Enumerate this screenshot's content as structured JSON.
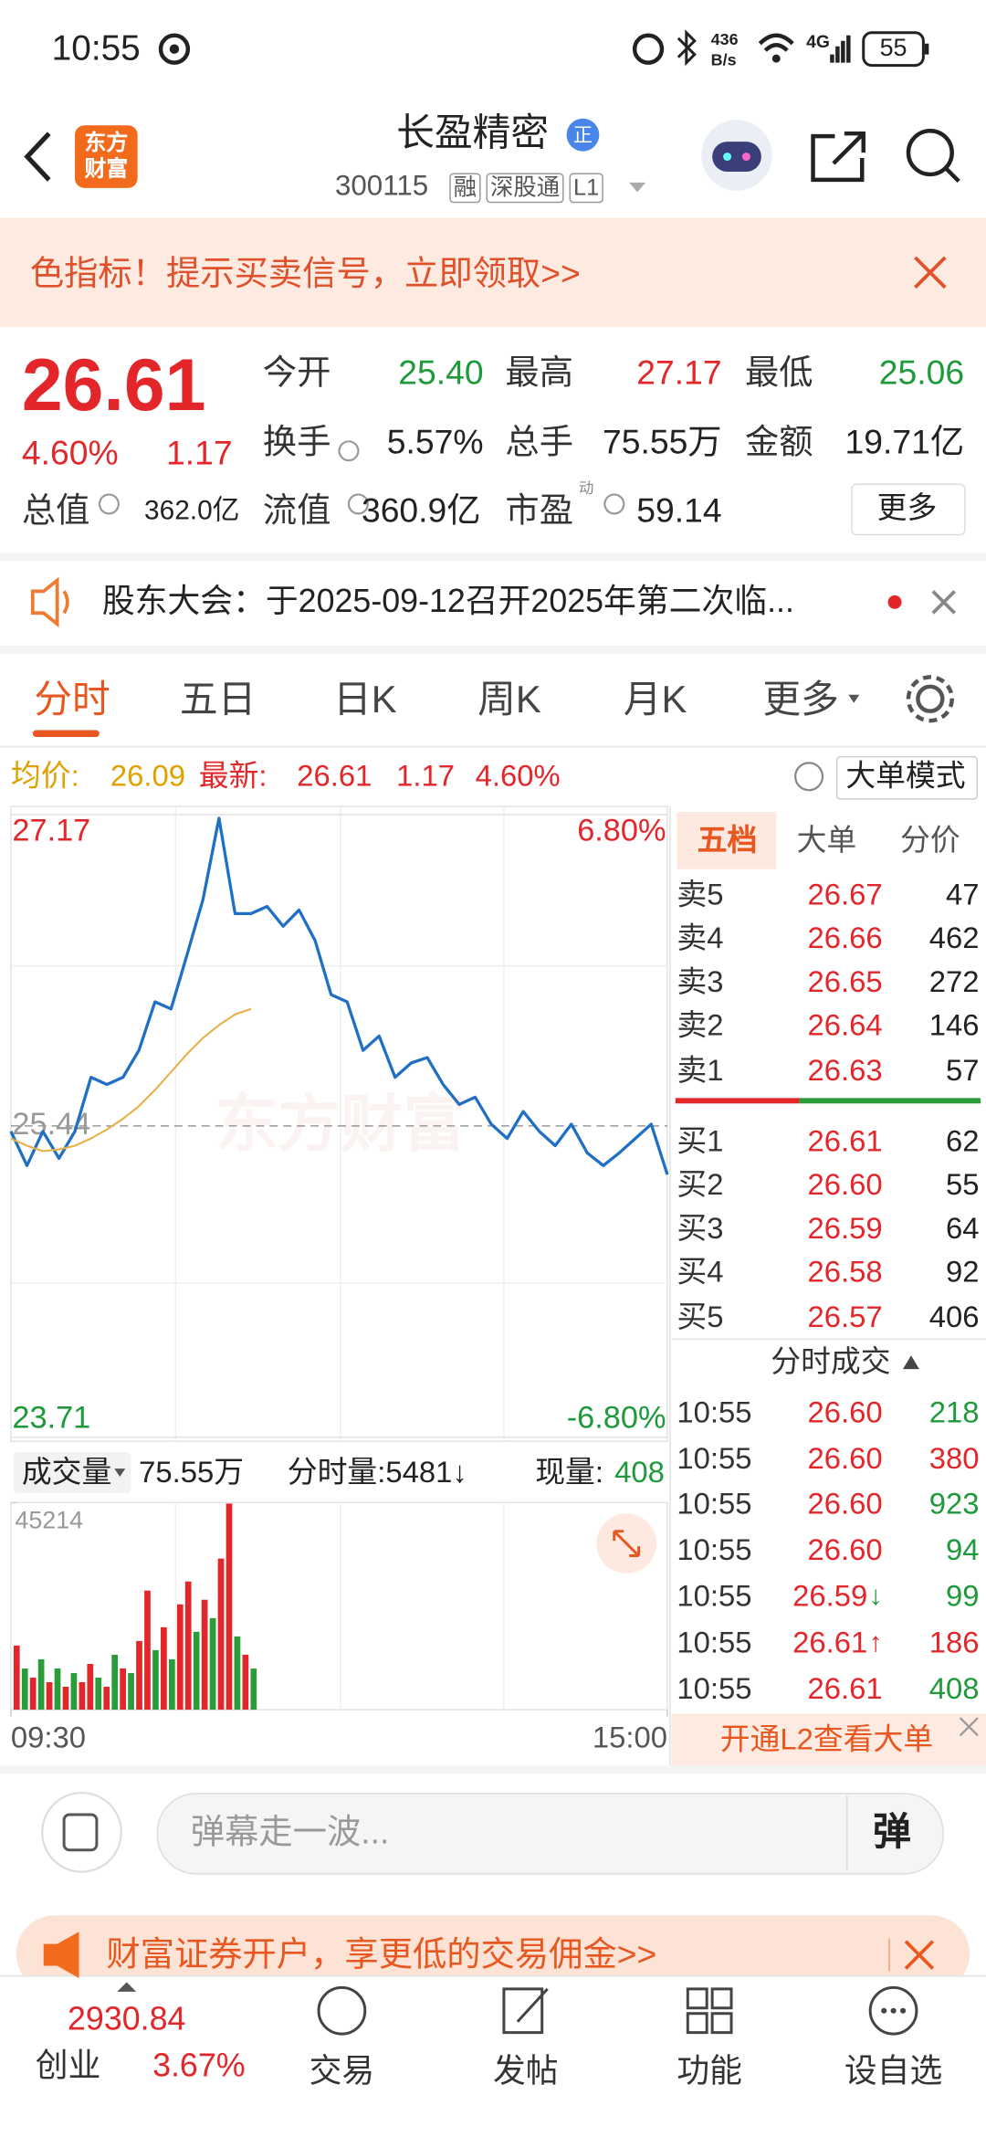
{
  "status_bar": {
    "time": "10:55",
    "speed": "436",
    "speed_unit": "B/s",
    "network": "4G",
    "battery": "55"
  },
  "header": {
    "logo": "东方财富",
    "title": "长盈精密",
    "badge": "正",
    "code": "300115",
    "tags": [
      "融",
      "深股通",
      "L1"
    ]
  },
  "banner": {
    "text": "色指标！提示买卖信号，立即领取>>"
  },
  "quote": {
    "price": "26.61",
    "change_pct": "4.60%",
    "change": "1.17",
    "fields": [
      {
        "label": "今开",
        "value": "25.40",
        "color": "#1e9a3a"
      },
      {
        "label": "最高",
        "value": "27.17",
        "color": "#e3262a"
      },
      {
        "label": "最低",
        "value": "25.06",
        "color": "#1e9a3a"
      },
      {
        "label": "换手",
        "value": "5.57%",
        "color": "#222222"
      },
      {
        "label": "总手",
        "value": "75.55万",
        "color": "#222222"
      },
      {
        "label": "金额",
        "value": "19.71亿",
        "color": "#222222"
      },
      {
        "label": "总值",
        "value": "362.0亿",
        "color": "#222222"
      },
      {
        "label": "流值",
        "value": "360.9亿",
        "color": "#222222"
      },
      {
        "label": "市盈",
        "value": "59.14",
        "color": "#222222",
        "sup": "动"
      }
    ],
    "more": "更多"
  },
  "notice": {
    "text": "股东大会：于2025-09-12召开2025年第二次临..."
  },
  "tabs": {
    "items": [
      "分时",
      "五日",
      "日K",
      "周K",
      "月K",
      "更多"
    ],
    "active": 0
  },
  "chart_info": {
    "avg_label": "均价:",
    "avg": "26.09",
    "latest_label": "最新:",
    "latest": "26.61",
    "change": "1.17",
    "change_pct": "4.60%",
    "mode": "大单模式"
  },
  "volume_info": {
    "label": "成交量",
    "total": "75.55万",
    "minute": "分时量:5481↓",
    "current_label": "现量:",
    "current": "408"
  },
  "chart_data": [
    {
      "type": "line",
      "ylim": [
        23.71,
        27.17
      ],
      "yticks": [
        27.17,
        25.44,
        23.71
      ],
      "y2lim": [
        -6.8,
        6.8
      ],
      "y2ticks": [
        {
          "value": 6.8,
          "label": "6.80%"
        },
        {
          "value": -6.8,
          "label": "-6.80%"
        }
      ],
      "xlim": [
        0,
        41
      ],
      "xticks": [
        {
          "value": 0,
          "label": "09:30"
        },
        {
          "value": 41,
          "label": "15:00"
        }
      ],
      "series": [
        {
          "color": "#1f6fc5",
          "values": [
            25.41,
            25.22,
            25.41,
            25.26,
            25.41,
            25.71,
            25.67,
            25.71,
            25.86,
            26.13,
            26.09,
            26.39,
            26.7,
            27.15,
            26.62,
            26.62,
            26.66,
            26.55,
            26.64,
            26.47,
            26.17,
            26.13,
            25.86,
            25.94,
            25.71,
            25.79,
            25.82,
            25.67,
            25.56,
            25.6,
            25.45,
            25.37,
            25.52,
            25.41,
            25.33,
            25.45,
            25.29,
            25.22,
            25.29,
            25.37,
            25.45,
            25.17
          ]
        },
        {
          "color": "#e8b04a",
          "values": [
            25.37,
            25.33,
            25.3,
            25.31,
            25.33,
            25.37,
            25.42,
            25.48,
            25.55,
            25.64,
            25.74,
            25.84,
            25.93,
            26.0,
            26.06,
            26.09,
            null,
            null,
            null,
            null,
            null,
            null,
            null,
            null,
            null,
            null,
            null,
            null,
            null,
            null,
            null,
            null,
            null,
            null,
            null,
            null,
            null,
            null,
            null,
            null,
            null,
            null
          ]
        }
      ]
    },
    {
      "type": "bar",
      "ylim": [
        0,
        45214
      ],
      "yticks": [
        45214
      ],
      "values": [
        14000,
        9000,
        7000,
        11000,
        6000,
        9000,
        5000,
        8000,
        6000,
        10000,
        7000,
        5000,
        12000,
        9000,
        8000,
        15000,
        26000,
        13000,
        18000,
        11000,
        23000,
        28000,
        17000,
        24000,
        20000,
        33000,
        45000,
        16000,
        12000,
        9000
      ],
      "up": [
        true,
        false,
        true,
        false,
        true,
        false,
        true,
        false,
        true,
        true,
        false,
        true,
        false,
        true,
        false,
        true,
        true,
        false,
        true,
        false,
        true,
        true,
        false,
        true,
        false,
        true,
        true,
        false,
        true,
        false
      ],
      "colors": {
        "up": "#e3262a",
        "down": "#2a9d3a"
      }
    }
  ],
  "order_book": {
    "tabs": [
      "五档",
      "大单",
      "分价"
    ],
    "asks": [
      {
        "label": "卖5",
        "price": "26.67",
        "vol": "47"
      },
      {
        "label": "卖4",
        "price": "26.66",
        "vol": "462"
      },
      {
        "label": "卖3",
        "price": "26.65",
        "vol": "272"
      },
      {
        "label": "卖2",
        "price": "26.64",
        "vol": "146"
      },
      {
        "label": "卖1",
        "price": "26.63",
        "vol": "57"
      }
    ],
    "bids": [
      {
        "label": "买1",
        "price": "26.61",
        "vol": "62"
      },
      {
        "label": "买2",
        "price": "26.60",
        "vol": "55"
      },
      {
        "label": "买3",
        "price": "26.59",
        "vol": "64"
      },
      {
        "label": "买4",
        "price": "26.58",
        "vol": "92"
      },
      {
        "label": "买5",
        "price": "26.57",
        "vol": "406"
      }
    ],
    "trades_title": "分时成交",
    "trades": [
      {
        "time": "10:55",
        "price": "26.60",
        "vol": "218",
        "color": "#1e9a3a"
      },
      {
        "time": "10:55",
        "price": "26.60",
        "vol": "380",
        "color": "#e3262a"
      },
      {
        "time": "10:55",
        "price": "26.60",
        "vol": "923",
        "color": "#1e9a3a"
      },
      {
        "time": "10:55",
        "price": "26.60",
        "vol": "94",
        "color": "#1e9a3a"
      },
      {
        "time": "10:55",
        "price": "26.59",
        "arrow": "↓",
        "arrow_color": "#1e9a3a",
        "vol": "99",
        "color": "#1e9a3a"
      },
      {
        "time": "10:55",
        "price": "26.61",
        "arrow": "↑",
        "arrow_color": "#e3262a",
        "vol": "186",
        "color": "#e3262a"
      },
      {
        "time": "10:55",
        "price": "26.61",
        "vol": "408",
        "color": "#1e9a3a"
      }
    ],
    "l2": "开通L2查看大单"
  },
  "comment": {
    "placeholder": "弹幕走一波...",
    "button": "弹"
  },
  "ad": {
    "text": "财富证券开户，享更低的交易佣金>>"
  },
  "nav": {
    "index_value": "2930.84",
    "index_name": "创业",
    "index_pct": "3.67%",
    "items": [
      "交易",
      "发帖",
      "功能",
      "设自选"
    ]
  }
}
